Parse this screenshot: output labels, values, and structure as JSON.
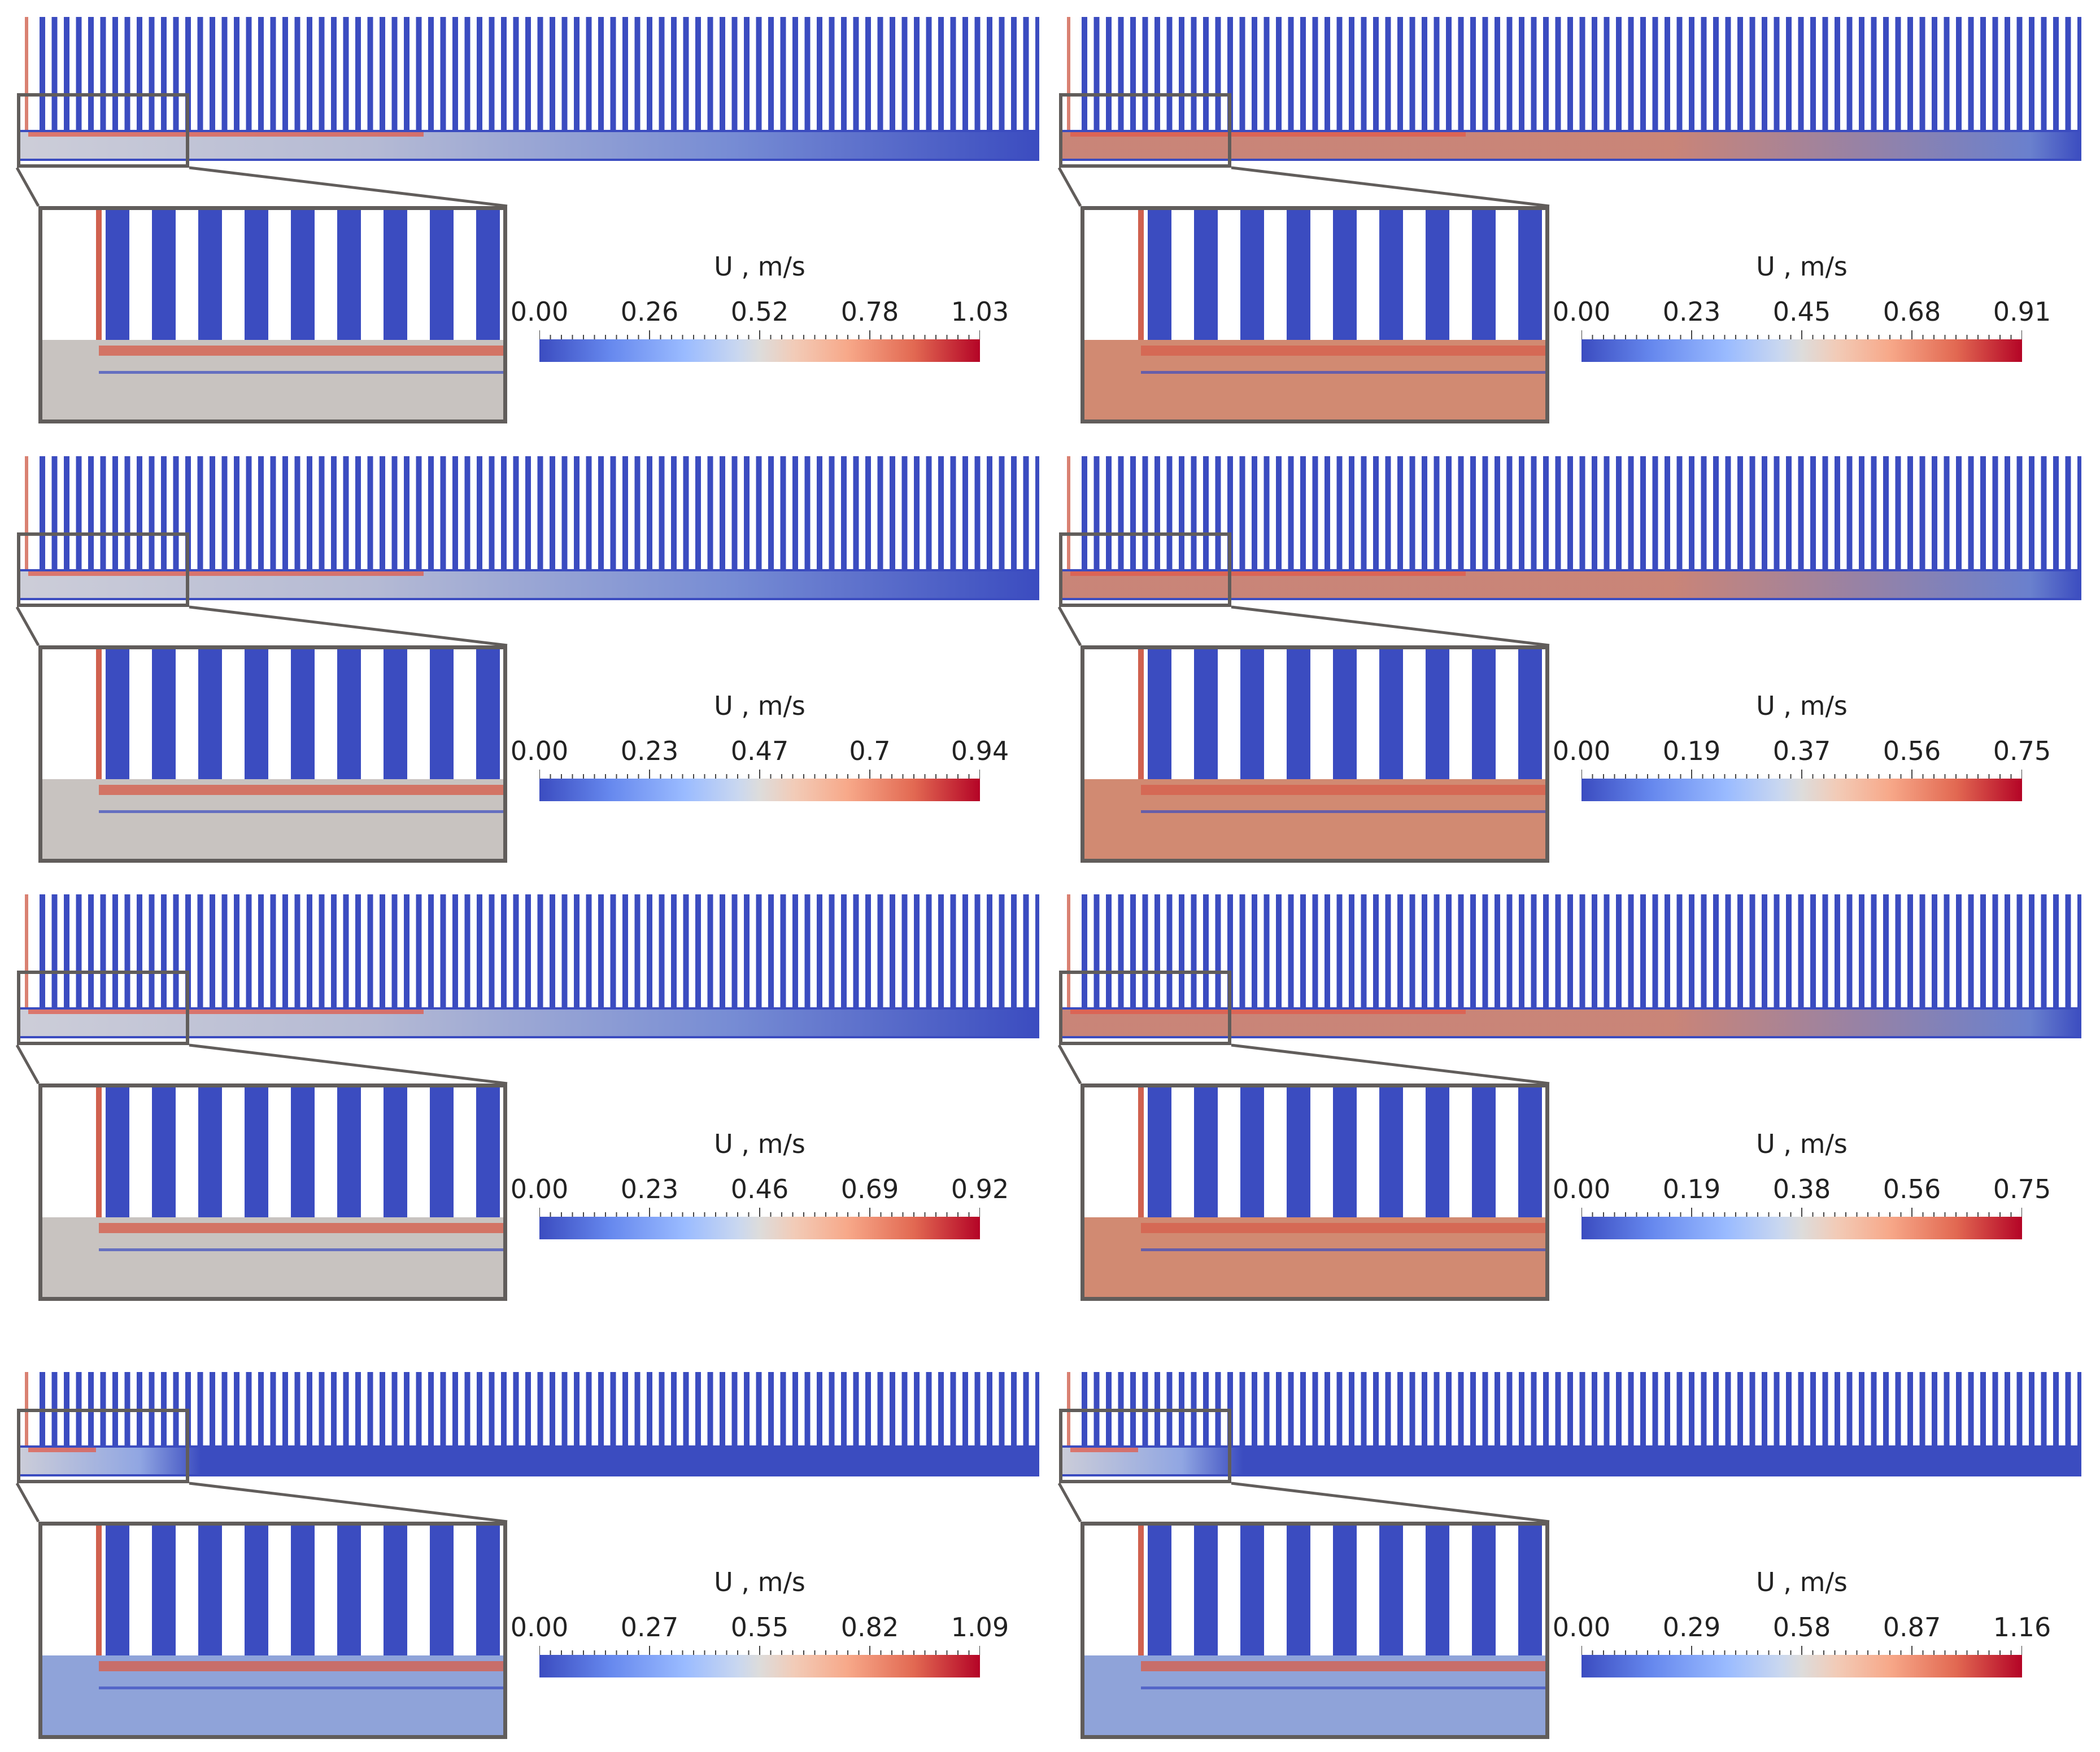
{
  "panels": [
    {
      "id": "r1c1",
      "colorbar": {
        "title": "U , m/s",
        "ticks": [
          "0.00",
          "0.26",
          "0.52",
          "0.78",
          "1.03"
        ]
      }
    },
    {
      "id": "r1c2",
      "colorbar": {
        "title": "U , m/s",
        "ticks": [
          "0.00",
          "0.23",
          "0.45",
          "0.68",
          "0.91"
        ]
      }
    },
    {
      "id": "r2c1",
      "colorbar": {
        "title": "U , m/s",
        "ticks": [
          "0.00",
          "0.23",
          "0.47",
          "0.7",
          "0.94"
        ]
      }
    },
    {
      "id": "r2c2",
      "colorbar": {
        "title": "U , m/s",
        "ticks": [
          "0.00",
          "0.19",
          "0.37",
          "0.56",
          "0.75"
        ]
      }
    },
    {
      "id": "r3c1",
      "colorbar": {
        "title": "U , m/s",
        "ticks": [
          "0.00",
          "0.23",
          "0.46",
          "0.69",
          "0.92"
        ]
      }
    },
    {
      "id": "r3c2",
      "colorbar": {
        "title": "U , m/s",
        "ticks": [
          "0.00",
          "0.19",
          "0.38",
          "0.56",
          "0.75"
        ]
      }
    },
    {
      "id": "r4c1",
      "colorbar": {
        "title": "U , m/s",
        "ticks": [
          "0.00",
          "0.27",
          "0.55",
          "0.82",
          "1.09"
        ]
      }
    },
    {
      "id": "r4c2",
      "colorbar": {
        "title": "U , m/s",
        "ticks": [
          "0.00",
          "0.29",
          "0.58",
          "0.87",
          "1.16"
        ]
      }
    }
  ],
  "colors": {
    "low": "#3b4cc0",
    "mid": "#dddcdb",
    "high": "#b40426",
    "frame": "#615d5b"
  }
}
